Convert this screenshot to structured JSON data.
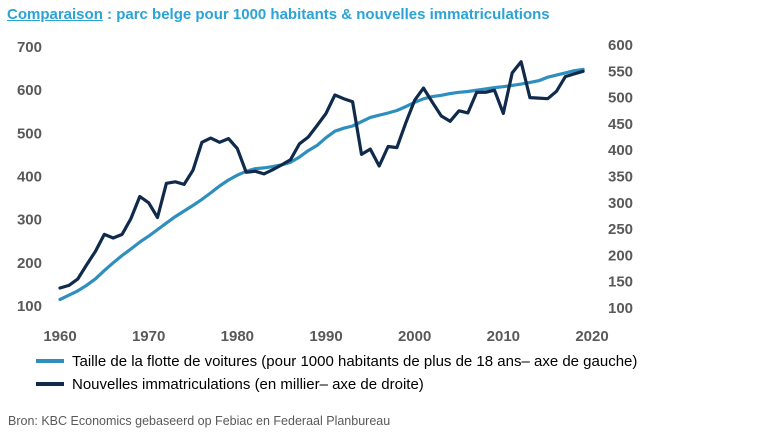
{
  "title": {
    "prefix": "Comparaison",
    "rest": " :  parc belge pour 1000 habitants  & nouvelles immatriculations"
  },
  "source": "Bron: KBC Economics gebaseerd op Febiac en Federaal Planbureau",
  "colors": {
    "fleet": "#2e8fbf",
    "registrations": "#0f2a4a",
    "title": "#2aa3d6",
    "ticks": "#595959"
  },
  "chart_data": {
    "type": "line",
    "grid": false,
    "legend_position": "bottom-left",
    "x_range": [
      1960,
      2020
    ],
    "x_ticks": [
      "1960",
      "1970",
      "1980",
      "1990",
      "2000",
      "2010",
      "2020"
    ],
    "y_left": {
      "range": [
        100,
        700
      ],
      "ticks": [
        "100",
        "200",
        "300",
        "400",
        "500",
        "600",
        "700"
      ]
    },
    "y_right": {
      "range": [
        100,
        600
      ],
      "ticks": [
        "100",
        "150",
        "200",
        "250",
        "300",
        "350",
        "400",
        "450",
        "500",
        "550",
        "600"
      ]
    },
    "series": [
      {
        "name": "Taille de la flotte de voitures (pour 1000 habitants de plus de 18 ans– axe de gauche)",
        "axis": "left",
        "x": [
          1960,
          1961,
          1962,
          1963,
          1964,
          1965,
          1966,
          1967,
          1968,
          1969,
          1970,
          1971,
          1972,
          1973,
          1974,
          1975,
          1976,
          1977,
          1978,
          1979,
          1980,
          1981,
          1982,
          1983,
          1984,
          1985,
          1986,
          1987,
          1988,
          1989,
          1990,
          1991,
          1992,
          1993,
          1994,
          1995,
          1996,
          1997,
          1998,
          1999,
          2000,
          2001,
          2002,
          2003,
          2004,
          2005,
          2006,
          2007,
          2008,
          2009,
          2010,
          2011,
          2012,
          2013,
          2014,
          2015,
          2016,
          2017,
          2018,
          2019
        ],
        "values": [
          115,
          125,
          135,
          148,
          163,
          182,
          200,
          217,
          232,
          248,
          262,
          277,
          292,
          307,
          320,
          333,
          347,
          362,
          378,
          392,
          403,
          412,
          418,
          420,
          423,
          427,
          433,
          445,
          460,
          472,
          490,
          505,
          512,
          517,
          527,
          537,
          542,
          547,
          553,
          562,
          572,
          580,
          585,
          588,
          592,
          595,
          597,
          600,
          603,
          606,
          608,
          611,
          614,
          618,
          622,
          630,
          635,
          640,
          645,
          648
        ]
      },
      {
        "name": "Nouvelles immatriculations (en millier– axe de droite)",
        "axis": "right",
        "x": [
          1960,
          1961,
          1962,
          1963,
          1964,
          1965,
          1966,
          1967,
          1968,
          1969,
          1970,
          1971,
          1972,
          1973,
          1974,
          1975,
          1976,
          1977,
          1978,
          1979,
          1980,
          1981,
          1982,
          1983,
          1984,
          1985,
          1986,
          1987,
          1988,
          1989,
          1990,
          1991,
          1992,
          1993,
          1994,
          1995,
          1996,
          1997,
          1998,
          1999,
          2000,
          2001,
          2002,
          2003,
          2004,
          2005,
          2006,
          2007,
          2008,
          2009,
          2010,
          2011,
          2012,
          2013,
          2014,
          2015,
          2016,
          2017,
          2018,
          2019
        ],
        "values": [
          138,
          143,
          155,
          182,
          208,
          240,
          233,
          240,
          270,
          312,
          300,
          272,
          337,
          340,
          335,
          362,
          415,
          423,
          415,
          422,
          403,
          358,
          360,
          355,
          363,
          372,
          382,
          412,
          425,
          447,
          470,
          505,
          498,
          492,
          392,
          402,
          370,
          407,
          405,
          452,
          495,
          518,
          491,
          465,
          455,
          475,
          471,
          510,
          510,
          514,
          470,
          547,
          568,
          500,
          499,
          498,
          512,
          540,
          545,
          550
        ]
      }
    ]
  }
}
